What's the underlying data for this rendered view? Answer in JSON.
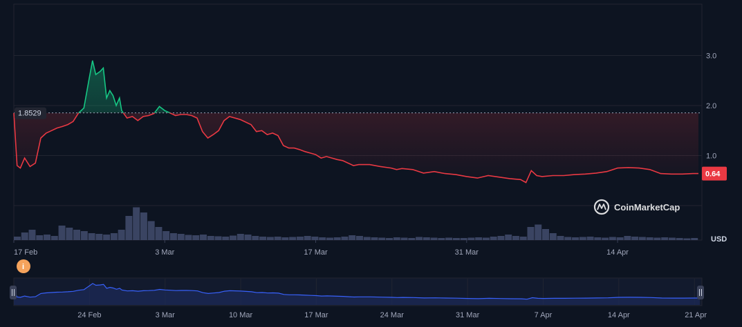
{
  "chart_data": {
    "type": "line",
    "ylabel": "USD",
    "ylim": [
      0,
      4
    ],
    "y_ticks": [
      "1.0",
      "2.0",
      "3.0"
    ],
    "y_tick_values": [
      1.0,
      2.0,
      3.0
    ],
    "x_ticks": [
      "17 Feb",
      "3 Mar",
      "17 Mar",
      "31 Mar",
      "14 Apr"
    ],
    "x_tick_days": [
      0,
      14,
      28,
      42,
      56
    ],
    "reference_value": 1.8529,
    "reference_label": "1.8529",
    "current_value": 0.64,
    "current_label": "0.64",
    "colors": {
      "above": "#16c784",
      "below": "#ea3943",
      "volume": "#4a5478",
      "navigator_line": "#3861fb",
      "grid": "#222531"
    },
    "series": [
      {
        "x": [
          0,
          0.3,
          0.6,
          1,
          1.5,
          2,
          2.5,
          3,
          3.5,
          4,
          4.5,
          5,
          5.5,
          6,
          6.5,
          7,
          7.3,
          7.6,
          8,
          8.3,
          8.6,
          8.9,
          9.2,
          9.5,
          9.8,
          10,
          10.5,
          11,
          11.5,
          12,
          12.5,
          13,
          13.5,
          14,
          14.5,
          15,
          15.5,
          16,
          16.5,
          17,
          17.5,
          18,
          18.5,
          19,
          19.5,
          20,
          21,
          22,
          22.5,
          23,
          23.5,
          24,
          24.5,
          25,
          25.5,
          26,
          26.5,
          27,
          27.5,
          28,
          28.5,
          29,
          29.5,
          30,
          30.5,
          31,
          31.5,
          32,
          32.5,
          33,
          34,
          35,
          35.5,
          36,
          37,
          38,
          39,
          40,
          41,
          42,
          43,
          44,
          45,
          46,
          47,
          47.5,
          48,
          48.5,
          49,
          50,
          51,
          52,
          53,
          54,
          55,
          56,
          57,
          58,
          59,
          60,
          61,
          62,
          63,
          63.5
        ],
        "y": [
          1.85,
          0.8,
          0.75,
          0.95,
          0.78,
          0.85,
          1.35,
          1.45,
          1.5,
          1.55,
          1.58,
          1.62,
          1.68,
          1.85,
          1.95,
          2.55,
          2.9,
          2.62,
          2.68,
          2.75,
          2.15,
          2.3,
          2.2,
          2.0,
          2.15,
          1.9,
          1.75,
          1.78,
          1.7,
          1.78,
          1.8,
          1.84,
          1.98,
          1.9,
          1.85,
          1.8,
          1.82,
          1.82,
          1.8,
          1.75,
          1.48,
          1.35,
          1.42,
          1.5,
          1.7,
          1.78,
          1.72,
          1.62,
          1.48,
          1.5,
          1.42,
          1.45,
          1.4,
          1.2,
          1.15,
          1.15,
          1.12,
          1.08,
          1.05,
          1.02,
          0.95,
          0.98,
          0.95,
          0.92,
          0.9,
          0.85,
          0.8,
          0.82,
          0.82,
          0.82,
          0.78,
          0.75,
          0.72,
          0.74,
          0.72,
          0.65,
          0.68,
          0.64,
          0.62,
          0.58,
          0.55,
          0.6,
          0.57,
          0.54,
          0.52,
          0.46,
          0.7,
          0.6,
          0.58,
          0.6,
          0.6,
          0.62,
          0.63,
          0.65,
          0.68,
          0.75,
          0.76,
          0.75,
          0.72,
          0.64,
          0.63,
          0.63,
          0.64,
          0.64
        ]
      }
    ],
    "volume": [
      0.1,
      0.22,
      0.3,
      0.14,
      0.16,
      0.12,
      0.42,
      0.36,
      0.3,
      0.26,
      0.2,
      0.18,
      0.16,
      0.2,
      0.3,
      0.7,
      0.95,
      0.8,
      0.55,
      0.38,
      0.26,
      0.2,
      0.18,
      0.15,
      0.14,
      0.16,
      0.12,
      0.11,
      0.1,
      0.13,
      0.18,
      0.16,
      0.12,
      0.1,
      0.09,
      0.1,
      0.08,
      0.09,
      0.1,
      0.12,
      0.1,
      0.08,
      0.07,
      0.08,
      0.1,
      0.14,
      0.12,
      0.09,
      0.08,
      0.07,
      0.06,
      0.08,
      0.07,
      0.06,
      0.09,
      0.08,
      0.07,
      0.06,
      0.07,
      0.06,
      0.06,
      0.07,
      0.08,
      0.07,
      0.1,
      0.12,
      0.16,
      0.12,
      0.1,
      0.38,
      0.45,
      0.32,
      0.2,
      0.12,
      0.09,
      0.08,
      0.09,
      0.1,
      0.08,
      0.07,
      0.09,
      0.08,
      0.12,
      0.1,
      0.09,
      0.08,
      0.07,
      0.08,
      0.07,
      0.06,
      0.05,
      0.06
    ],
    "navigator": {
      "x_ticks": [
        "24 Feb",
        "3 Mar",
        "10 Mar",
        "17 Mar",
        "24 Mar",
        "31 Mar",
        "7 Apr",
        "14 Apr",
        "21 Apr"
      ],
      "x_tick_days": [
        7,
        14,
        21,
        28,
        35,
        42,
        49,
        56,
        63
      ]
    },
    "watermark": "CoinMarketCap",
    "event_marker": "i"
  }
}
